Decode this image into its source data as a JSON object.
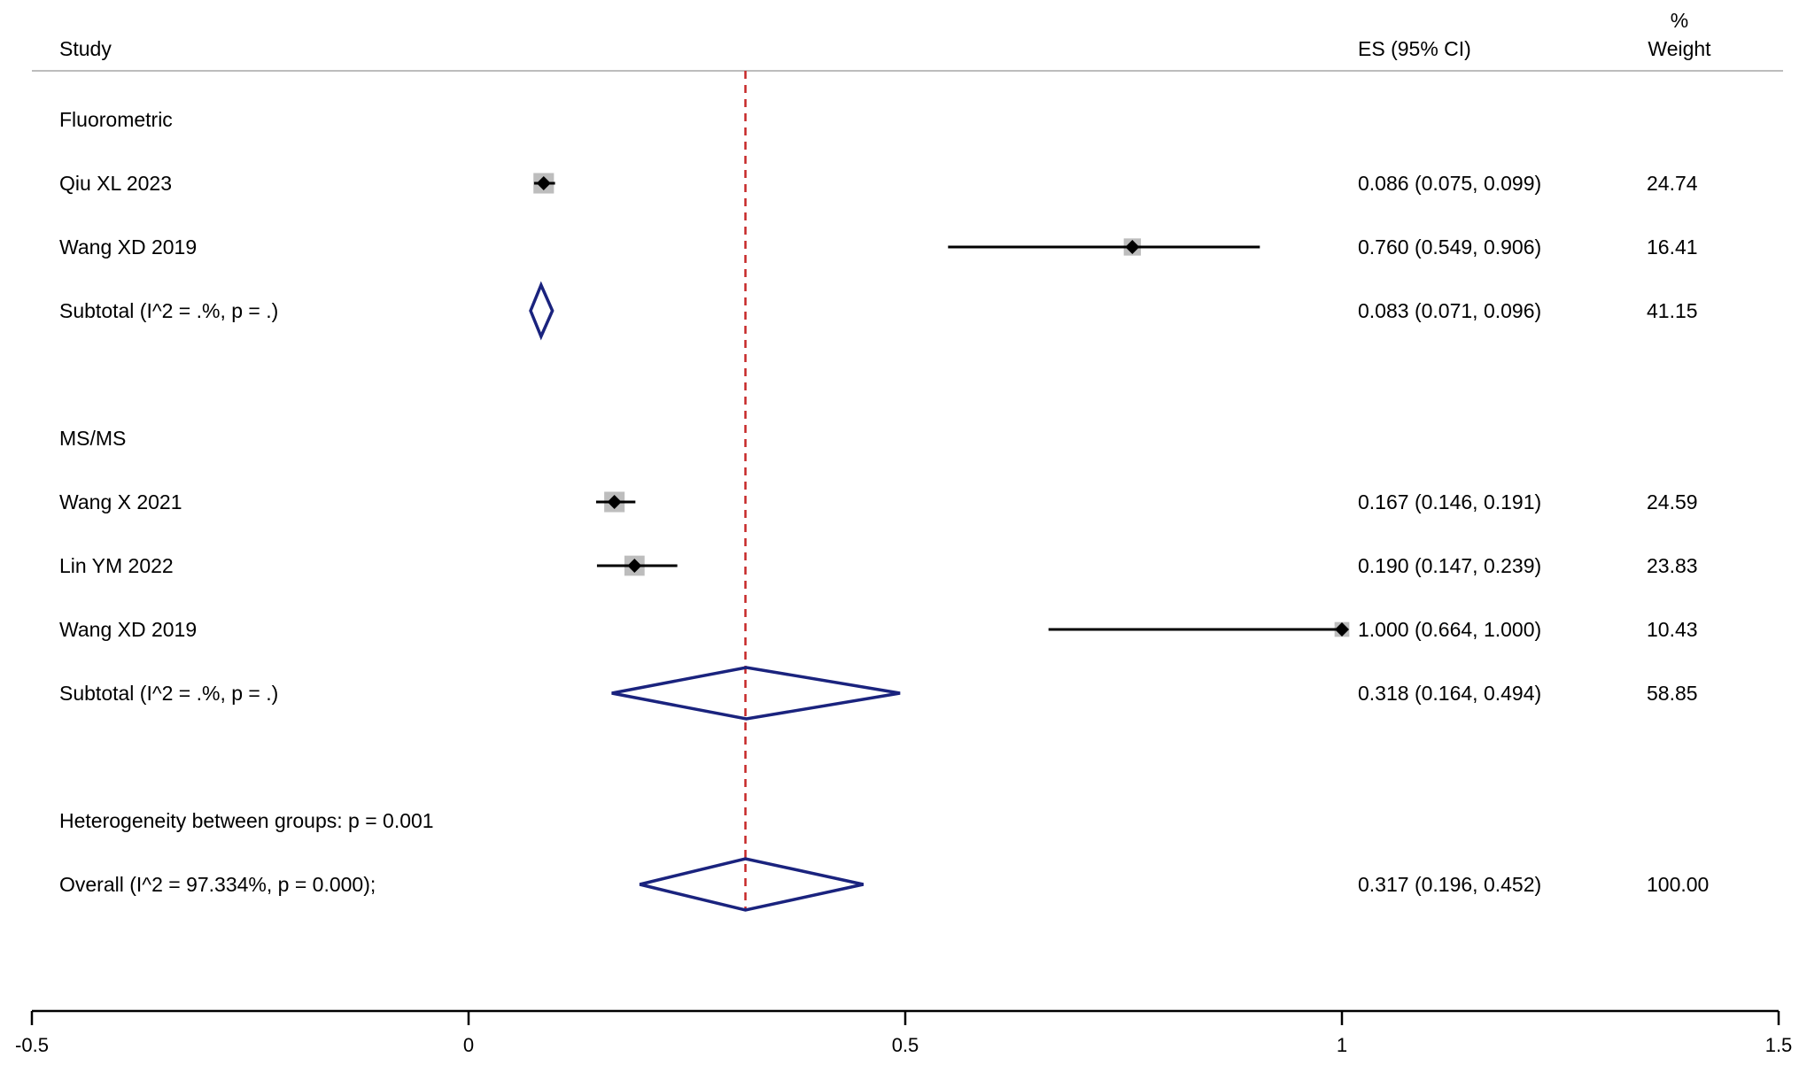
{
  "chart_data": {
    "type": "forest",
    "headers": {
      "study": "Study",
      "es": "ES (95% CI)",
      "weight_line1": "%",
      "weight_line2": "Weight"
    },
    "xlim": [
      -0.5,
      1.5
    ],
    "xticks": [
      -0.5,
      0,
      0.5,
      1,
      1.5
    ],
    "xtick_labels": [
      "-0.5",
      "0",
      "0.5",
      "1",
      "1.5"
    ],
    "reference_line": 0.317,
    "rows": [
      {
        "kind": "group",
        "label": "Fluorometric"
      },
      {
        "kind": "study",
        "label": "Qiu XL 2023",
        "es": 0.086,
        "lo": 0.075,
        "hi": 0.099,
        "es_text": "0.086 (0.075, 0.099)",
        "weight": "24.74"
      },
      {
        "kind": "study",
        "label": "Wang XD 2019",
        "es": 0.76,
        "lo": 0.549,
        "hi": 0.906,
        "es_text": "0.760 (0.549, 0.906)",
        "weight": "16.41"
      },
      {
        "kind": "subtotal",
        "label": "Subtotal  (I^2 = .%, p = .)",
        "es": 0.083,
        "lo": 0.071,
        "hi": 0.096,
        "es_text": "0.083 (0.071, 0.096)",
        "weight": "41.15"
      },
      {
        "kind": "blank"
      },
      {
        "kind": "group",
        "label": "MS/MS"
      },
      {
        "kind": "study",
        "label": "Wang X 2021",
        "es": 0.167,
        "lo": 0.146,
        "hi": 0.191,
        "es_text": "0.167 (0.146, 0.191)",
        "weight": "24.59"
      },
      {
        "kind": "study",
        "label": "Lin YM 2022",
        "es": 0.19,
        "lo": 0.147,
        "hi": 0.239,
        "es_text": "0.190 (0.147, 0.239)",
        "weight": "23.83"
      },
      {
        "kind": "study",
        "label": "Wang XD 2019",
        "es": 1.0,
        "lo": 0.664,
        "hi": 1.0,
        "es_text": "1.000 (0.664, 1.000)",
        "weight": "10.43"
      },
      {
        "kind": "subtotal",
        "label": "Subtotal  (I^2 = .%, p = .)",
        "es": 0.318,
        "lo": 0.164,
        "hi": 0.494,
        "es_text": "0.318 (0.164, 0.494)",
        "weight": "58.85"
      },
      {
        "kind": "blank"
      },
      {
        "kind": "note",
        "label": "Heterogeneity between groups: p = 0.001"
      },
      {
        "kind": "subtotal",
        "label": "Overall  (I^2 = 97.334%, p = 0.000);",
        "es": 0.317,
        "lo": 0.196,
        "hi": 0.452,
        "es_text": "0.317 (0.196, 0.452)",
        "weight": "100.00"
      }
    ],
    "colors": {
      "point": "#000000",
      "weight_box": "#bdbdbd",
      "diamond": "#1a237e",
      "reference_line": "#c62828",
      "axis": "#000000",
      "header_rule": "#bdbdbd"
    }
  }
}
